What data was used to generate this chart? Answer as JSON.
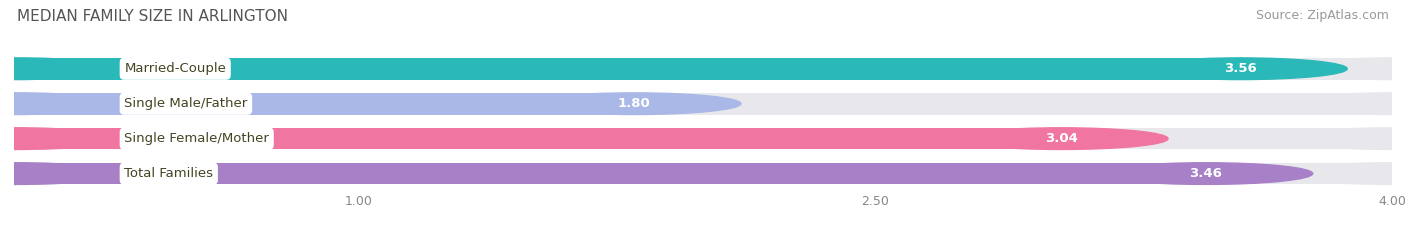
{
  "title": "MEDIAN FAMILY SIZE IN ARLINGTON",
  "source": "Source: ZipAtlas.com",
  "categories": [
    "Married-Couple",
    "Single Male/Father",
    "Single Female/Mother",
    "Total Families"
  ],
  "values": [
    3.56,
    1.8,
    3.04,
    3.46
  ],
  "bar_colors": [
    "#2ab8b8",
    "#aab8e8",
    "#f075a0",
    "#a880c8"
  ],
  "bar_bg_color": "#e8e8ec",
  "xticks": [
    1.0,
    2.5,
    4.0
  ],
  "xmin": 0.0,
  "xmax": 4.0,
  "title_fontsize": 11,
  "source_fontsize": 9,
  "label_fontsize": 9.5,
  "value_fontsize": 9.5,
  "tick_fontsize": 9,
  "background_color": "#ffffff",
  "label_text_color": "#555533"
}
